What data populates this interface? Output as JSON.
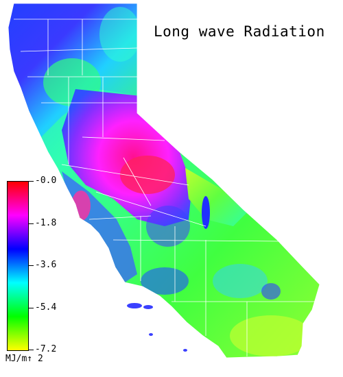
{
  "map": {
    "title": "Long wave Radiation",
    "units": "MJ/m↑ 2"
  },
  "legend": {
    "colors": [
      "#ff0000",
      "#ff00ff",
      "#0000ff",
      "#00ffff",
      "#00ff00",
      "#ffff00"
    ],
    "ticks": [
      {
        "label": "-0.0",
        "value": 0.0
      },
      {
        "label": "-1.8",
        "value": -1.8
      },
      {
        "label": "-3.6",
        "value": -3.6
      },
      {
        "label": "-5.4",
        "value": -5.4
      },
      {
        "label": "-7.2",
        "value": -7.2
      }
    ],
    "min": -7.2,
    "max": 0.0
  }
}
